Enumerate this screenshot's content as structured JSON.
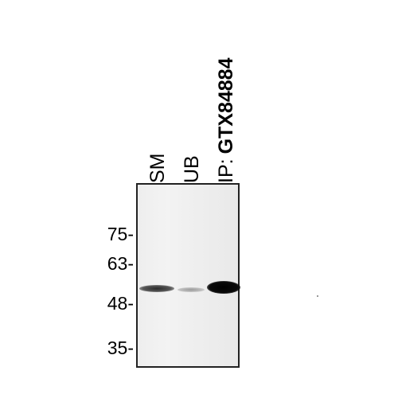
{
  "lanes": [
    {
      "label": "SM"
    },
    {
      "label": "UB"
    },
    {
      "label": "IP:",
      "antibody": "GTX84884"
    }
  ],
  "markers": [
    {
      "label": "75-"
    },
    {
      "label": "63-"
    },
    {
      "label": "48-"
    },
    {
      "label": "35-"
    }
  ],
  "bands": [
    {
      "lane": "SM",
      "intensity": "medium"
    },
    {
      "lane": "UB",
      "intensity": "faint"
    },
    {
      "lane": "IP",
      "intensity": "strong"
    }
  ]
}
